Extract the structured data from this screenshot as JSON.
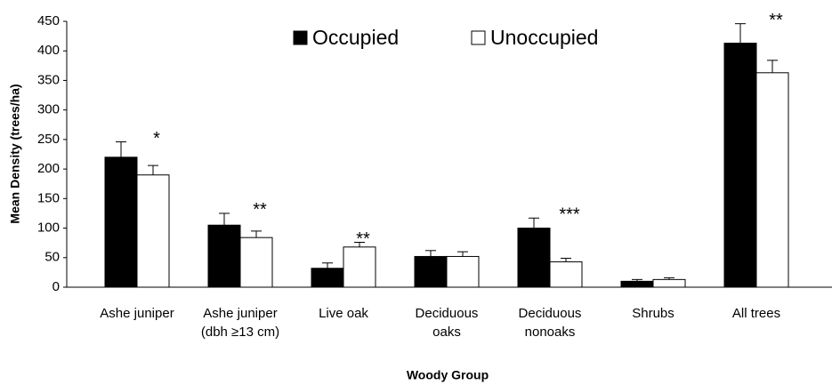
{
  "chart_data": {
    "type": "bar",
    "xlabel": "Woody Group",
    "ylabel": "Mean Density (trees/ha)",
    "categories": [
      [
        "Ashe juniper"
      ],
      [
        "Ashe juniper",
        "(dbh ≥13 cm)"
      ],
      [
        "Live oak"
      ],
      [
        "Deciduous",
        "oaks"
      ],
      [
        "Deciduous",
        "nonoaks"
      ],
      [
        "Shrubs"
      ],
      [
        "All trees"
      ]
    ],
    "series": [
      {
        "name": "Occupied",
        "color": "#000000",
        "values": [
          220,
          105,
          32,
          52,
          100,
          10,
          413
        ],
        "errors": [
          26,
          20,
          9,
          10,
          17,
          3,
          33
        ]
      },
      {
        "name": "Unoccupied",
        "color": "#ffffff",
        "values": [
          190,
          84,
          68,
          52,
          43,
          13,
          363
        ],
        "errors": [
          16,
          11,
          8,
          8,
          6,
          3,
          21
        ]
      }
    ],
    "annotations": [
      "*",
      "**",
      "**",
      null,
      "***",
      null,
      "**"
    ],
    "ylim": [
      0,
      450
    ],
    "yticks": [
      0,
      50,
      100,
      150,
      200,
      250,
      300,
      350,
      400,
      450
    ],
    "legend": "top"
  }
}
